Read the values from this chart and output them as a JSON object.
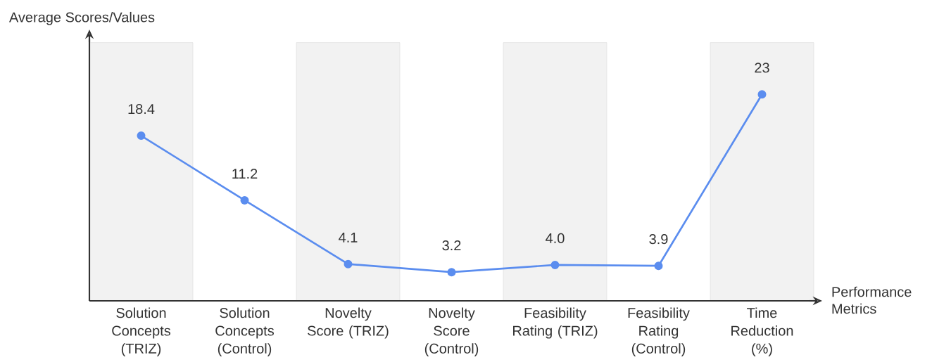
{
  "chart_data": {
    "type": "line",
    "xlabel": "Performance Metrics",
    "ylabel": "Average Scores/Values",
    "categories": [
      "Solution Concepts (TRIZ)",
      "Solution Concepts (Control)",
      "Novelty Score (TRIZ)",
      "Novelty Score (Control)",
      "Feasibility Rating (TRIZ)",
      "Feasibility Rating (Control)",
      "Time Reduction (%)"
    ],
    "values": [
      18.4,
      11.2,
      4.1,
      3.2,
      4.0,
      3.9,
      23
    ],
    "value_labels": [
      "18.4",
      "11.2",
      "4.1",
      "3.2",
      "4.0",
      "3.9",
      "23"
    ],
    "color": "#5b8def",
    "marker": "circle",
    "line_style": "solid",
    "grid": false
  }
}
